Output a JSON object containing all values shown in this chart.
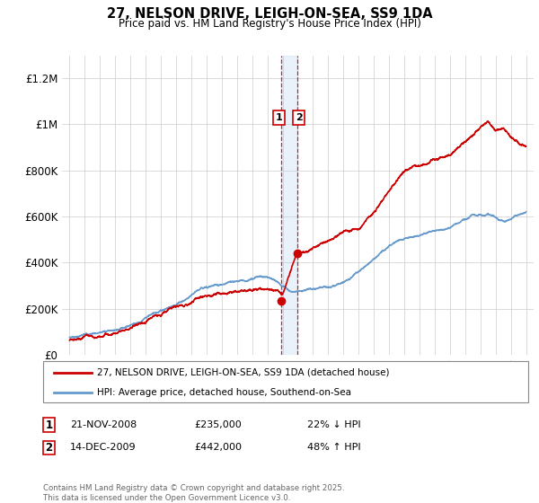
{
  "title": "27, NELSON DRIVE, LEIGH-ON-SEA, SS9 1DA",
  "subtitle": "Price paid vs. HM Land Registry's House Price Index (HPI)",
  "legend_line1": "27, NELSON DRIVE, LEIGH-ON-SEA, SS9 1DA (detached house)",
  "legend_line2": "HPI: Average price, detached house, Southend-on-Sea",
  "footer": "Contains HM Land Registry data © Crown copyright and database right 2025.\nThis data is licensed under the Open Government Licence v3.0.",
  "transaction1_date": "21-NOV-2008",
  "transaction1_price": "£235,000",
  "transaction1_hpi": "22% ↓ HPI",
  "transaction2_date": "14-DEC-2009",
  "transaction2_price": "£442,000",
  "transaction2_hpi": "48% ↑ HPI",
  "red_color": "#cc0000",
  "blue_color": "#6699cc",
  "vline_x1": 2008.9,
  "vline_x2": 2009.95,
  "t1_price": 235000,
  "t2_price": 442000,
  "ylim": [
    0,
    1300000
  ],
  "xlim_start": 1994.5,
  "xlim_end": 2025.5,
  "yticks": [
    0,
    200000,
    400000,
    600000,
    800000,
    1000000,
    1200000
  ],
  "ytick_labels": [
    "£0",
    "£200K",
    "£400K",
    "£600K",
    "£800K",
    "£1M",
    "£1.2M"
  ],
  "xticks": [
    1995,
    1996,
    1997,
    1998,
    1999,
    2000,
    2001,
    2002,
    2003,
    2004,
    2005,
    2006,
    2007,
    2008,
    2009,
    2010,
    2011,
    2012,
    2013,
    2014,
    2015,
    2016,
    2017,
    2018,
    2019,
    2020,
    2021,
    2022,
    2023,
    2024,
    2025
  ]
}
